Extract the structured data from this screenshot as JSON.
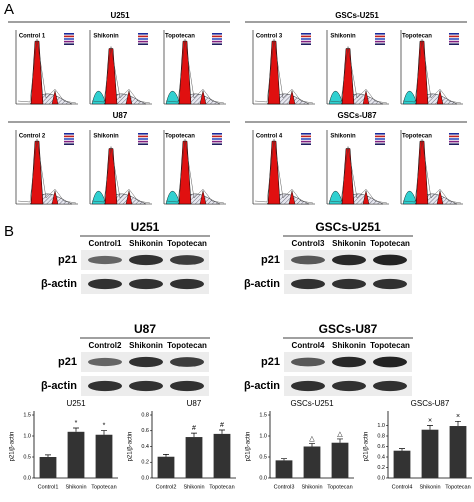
{
  "panel_labels": [
    "A",
    "B"
  ],
  "flow": {
    "groups": [
      {
        "title": "U251",
        "panels": [
          "Control 1",
          "Shikonin",
          "Topotecan"
        ]
      },
      {
        "title": "GSCs-U251",
        "panels": [
          "Control 3",
          "Shikonin",
          "Topotecan"
        ]
      },
      {
        "title": "U87",
        "panels": [
          "Control 2",
          "Shikonin",
          "Topotecan"
        ]
      },
      {
        "title": "GSCs-U87",
        "panels": [
          "Control 4",
          "Shikonin",
          "Topotecan"
        ]
      }
    ]
  },
  "blots": {
    "groups": [
      {
        "title": "U251",
        "lanes": [
          "Control1",
          "Shikonin",
          "Topotecan"
        ],
        "rows": [
          "p21",
          "β-actin"
        ]
      },
      {
        "title": "GSCs-U251",
        "lanes": [
          "Control3",
          "Shikonin",
          "Topotecan"
        ],
        "rows": [
          "p21",
          "β-actin"
        ]
      },
      {
        "title": "U87",
        "lanes": [
          "Control2",
          "Shikonin",
          "Topotecan"
        ],
        "rows": [
          "p21",
          "β-actin"
        ]
      },
      {
        "title": "GSCs-U87",
        "lanes": [
          "Control4",
          "Shikonin",
          "Topotecan"
        ],
        "rows": [
          "p21",
          "β-actin"
        ]
      }
    ]
  },
  "chart_data": [
    {
      "type": "bar",
      "title": "U251",
      "y_label": "p21/β-actin",
      "categories": [
        "Control1",
        "Shikonin",
        "Topotecan"
      ],
      "values": [
        0.5,
        1.1,
        1.03
      ],
      "errors": [
        0.05,
        0.09,
        0.1
      ],
      "annotations": [
        null,
        "*",
        "*"
      ],
      "color": "#333333",
      "ylim": [
        0,
        1.5
      ],
      "yticks": [
        {
          "value": 0,
          "label": "0.0"
        },
        {
          "value": 0.5,
          "label": "0.5"
        },
        {
          "value": 1,
          "label": "1.0"
        },
        {
          "value": 1.5,
          "label": "1.5"
        }
      ]
    },
    {
      "type": "bar",
      "title": "U87",
      "y_label": "p21/β-actin",
      "categories": [
        "Control2",
        "Shikonin",
        "Topotecan"
      ],
      "values": [
        0.27,
        0.52,
        0.56
      ],
      "errors": [
        0.03,
        0.05,
        0.05
      ],
      "annotations": [
        null,
        "#",
        "#"
      ],
      "color": "#333333",
      "ylim": [
        0,
        0.8
      ],
      "yticks": [
        {
          "value": 0,
          "label": "0.0"
        },
        {
          "value": 0.2,
          "label": "0.2"
        },
        {
          "value": 0.4,
          "label": "0.4"
        },
        {
          "value": 0.6,
          "label": "0.6"
        },
        {
          "value": 0.8,
          "label": "0.8"
        }
      ]
    },
    {
      "type": "bar",
      "title": "GSCs-U251",
      "y_label": "p21/β-actin",
      "categories": [
        "Control3",
        "Shikonin",
        "Topotecan"
      ],
      "values": [
        0.42,
        0.75,
        0.84
      ],
      "errors": [
        0.04,
        0.07,
        0.09
      ],
      "annotations": [
        null,
        "△",
        "△"
      ],
      "color": "#333333",
      "ylim": [
        0,
        1.5
      ],
      "yticks": [
        {
          "value": 0,
          "label": "0.0"
        },
        {
          "value": 0.5,
          "label": "0.5"
        },
        {
          "value": 1,
          "label": "1.0"
        },
        {
          "value": 1.5,
          "label": "1.5"
        }
      ]
    },
    {
      "type": "bar",
      "title": "GSCs-U87",
      "y_label": "p21/β-actin",
      "categories": [
        "Control4",
        "Shikonin",
        "Topotecan"
      ],
      "values": [
        0.52,
        0.92,
        0.99
      ],
      "errors": [
        0.04,
        0.08,
        0.09
      ],
      "annotations": [
        null,
        "×",
        "×"
      ],
      "color": "#333333",
      "ylim": [
        0,
        1.2
      ],
      "yticks": [
        {
          "value": 0,
          "label": "0.0"
        },
        {
          "value": 0.2,
          "label": "0.2"
        },
        {
          "value": 0.4,
          "label": "0.4"
        },
        {
          "value": 0.6,
          "label": "0.6"
        },
        {
          "value": 0.8,
          "label": "0.8"
        },
        {
          "value": 1,
          "label": "1.0"
        }
      ]
    }
  ]
}
